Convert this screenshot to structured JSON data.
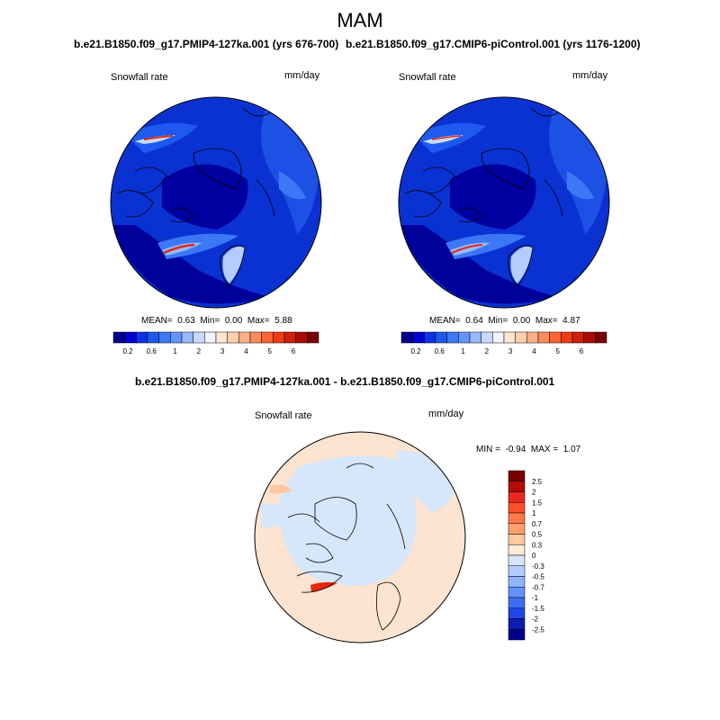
{
  "figure": {
    "season": "MAM"
  },
  "panel_left": {
    "title": "b.e21.B1850.f09_g17.PMIP4-127ka.001 (yrs 676-700)",
    "variable": "Snowfall rate",
    "units": "mm/day",
    "stats": {
      "mean_label": "MEAN=",
      "mean": "0.63",
      "min_label": "Min=",
      "min": "0.00",
      "max_label": "Max=",
      "max": "5.88"
    }
  },
  "panel_right": {
    "title": "b.e21.B1850.f09_g17.CMIP6-piControl.001 (yrs 1176-1200)",
    "variable": "Snowfall rate",
    "units": "mm/day",
    "stats": {
      "mean_label": "MEAN=",
      "mean": "0.64",
      "min_label": "Min=",
      "min": "0.00",
      "max_label": "Max=",
      "max": "4.87"
    }
  },
  "panel_diff": {
    "title": "b.e21.B1850.f09_g17.PMIP4-127ka.001 - b.e21.B1850.f09_g17.CMIP6-piControl.001",
    "variable": "Snowfall rate",
    "units": "mm/day",
    "stats": {
      "min_label": "MIN =",
      "min": "-0.94",
      "max_label": "MAX =",
      "max": "1.07"
    }
  },
  "colorbar_abs": {
    "tick_labels": [
      "0.2",
      "0.6",
      "1",
      "2",
      "3",
      "4",
      "5",
      "6"
    ],
    "colors": [
      "#00008b",
      "#0000cd",
      "#0a32e6",
      "#1e5af0",
      "#3c78f5",
      "#6496fa",
      "#96b9ff",
      "#c8dcff",
      "#f0f5ff",
      "#ffe6d2",
      "#ffcdaf",
      "#ffaf87",
      "#ff8c5f",
      "#ff6432",
      "#f03c14",
      "#d21e0a",
      "#aa0a05",
      "#780000"
    ]
  },
  "colorbar_diff": {
    "labels": [
      "2.5",
      "2",
      "1.5",
      "1",
      "0.7",
      "0.5",
      "0.3",
      "0",
      "-0.3",
      "-0.5",
      "-0.7",
      "-1",
      "-1.5",
      "-2",
      "-2.5"
    ],
    "colors": [
      "#780000",
      "#b40a0a",
      "#e6281e",
      "#ff502d",
      "#ff7846",
      "#ffa06e",
      "#ffc8a0",
      "#ffebd7",
      "#d7e6ff",
      "#b4cdff",
      "#8cb4ff",
      "#6491ff",
      "#3c6ef5",
      "#1e46e6",
      "#0a1eb4",
      "#00008b"
    ]
  },
  "map_colors": {
    "ocean_deep": "#0000a0",
    "ocean": "#0a32d2",
    "mid": "#2850e6",
    "land_light": "#1e46dc",
    "bright": "#5a8cf0",
    "peak": "#e6280a",
    "diff_pos": "#fde4d0",
    "diff_neg": "#d6e6fb"
  }
}
